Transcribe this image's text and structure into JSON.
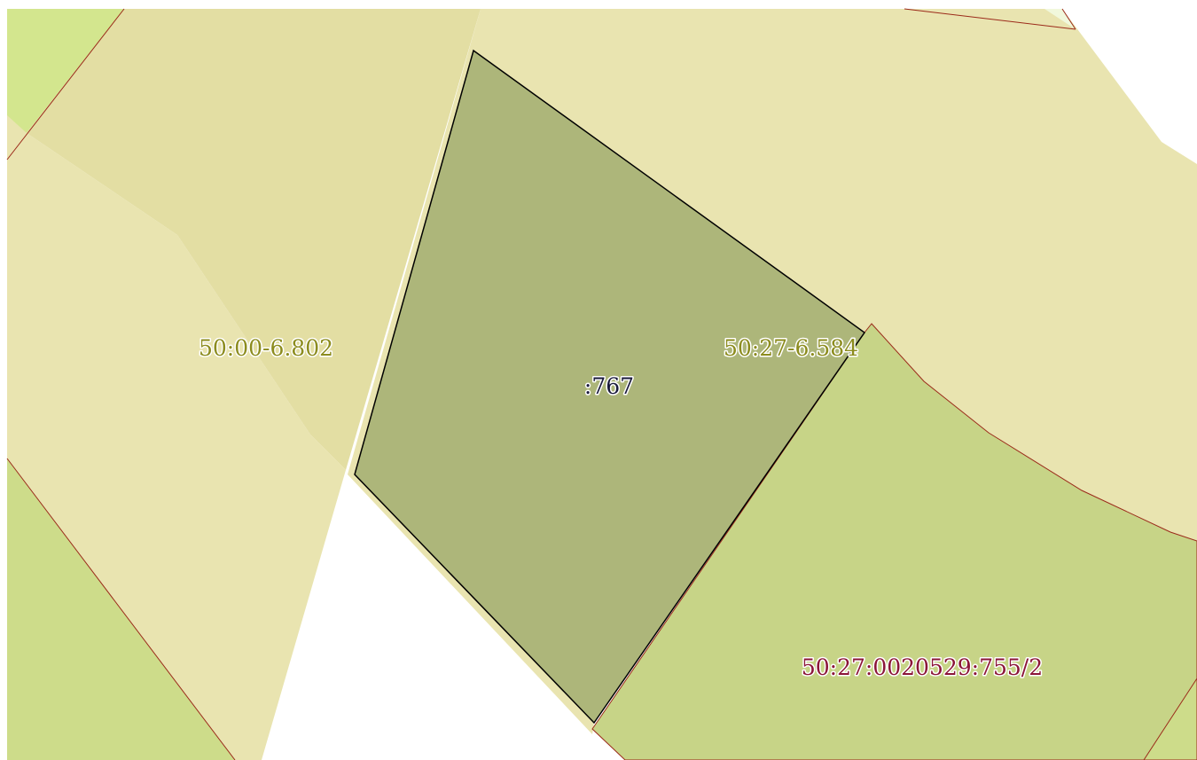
{
  "map": {
    "labels": [
      "50:00-6.802",
      ":767",
      "50:27-6.584",
      "50:27:0020529:755/2"
    ]
  }
}
